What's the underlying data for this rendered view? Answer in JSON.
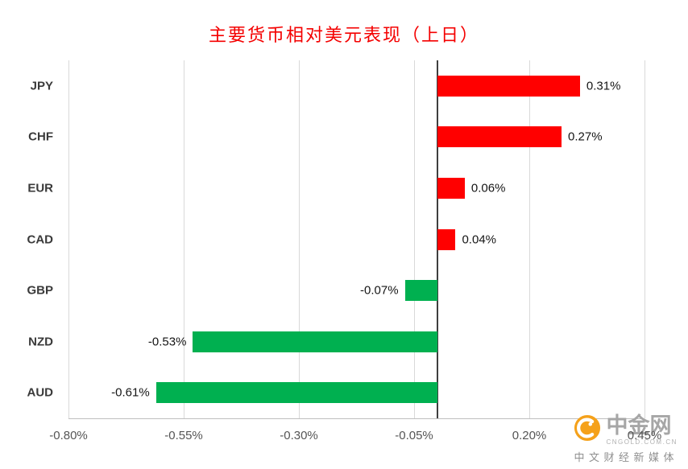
{
  "chart_data": {
    "type": "bar",
    "orientation": "horizontal",
    "title": "主要货币相对美元表现（上日）",
    "title_color": "#f40000",
    "categories": [
      "JPY",
      "CHF",
      "EUR",
      "CAD",
      "GBP",
      "NZD",
      "AUD"
    ],
    "values": [
      0.31,
      0.27,
      0.06,
      0.04,
      -0.07,
      -0.53,
      -0.61
    ],
    "value_labels": [
      "0.31%",
      "0.27%",
      "0.06%",
      "0.04%",
      "-0.07%",
      "-0.53%",
      "-0.61%"
    ],
    "xlim": [
      -0.8,
      0.45
    ],
    "x_ticks": [
      -0.8,
      -0.55,
      -0.3,
      -0.05,
      0.2,
      0.45
    ],
    "x_tick_labels": [
      "-0.80%",
      "-0.55%",
      "-0.30%",
      "-0.05%",
      "0.20%",
      "0.45%"
    ],
    "positive_color": "#ff0000",
    "negative_color": "#00b050",
    "grid": true,
    "gridline_color": "#d9d9d9",
    "zero_line_color": "#3f3f3f",
    "axis_line_color": "#bfbfbf",
    "legend": "none"
  },
  "watermark": {
    "brand": "中金网",
    "domain": "CNGOLD.COM.CN",
    "tagline": "中文财经新媒体",
    "logo_color": "#f5a11a"
  }
}
